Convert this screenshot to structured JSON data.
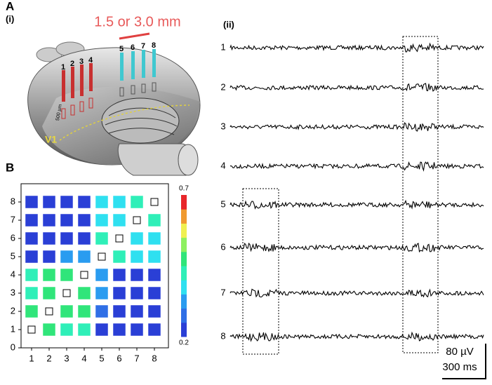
{
  "panel_a": {
    "label": "A",
    "sublabel": "(i)",
    "spacing_label": "1.5 or 3.0 mm",
    "electrodes": [
      "1",
      "2",
      "3",
      "4",
      "5",
      "6",
      "7",
      "8"
    ],
    "depth_label": "500 µm",
    "area_label": "V1"
  },
  "panel_b": {
    "label": "B",
    "type": "heatmap",
    "xticks": [
      1,
      2,
      3,
      4,
      5,
      6,
      7,
      8
    ],
    "yticks": [
      0,
      1,
      2,
      3,
      4,
      5,
      6,
      7,
      8
    ],
    "xlim": [
      0.4,
      8.8
    ],
    "ylim": [
      0,
      9
    ],
    "values": [
      [
        null,
        0.47,
        0.42,
        0.42,
        0.22,
        0.22,
        0.22,
        0.22
      ],
      [
        0.47,
        null,
        0.47,
        0.47,
        0.27,
        0.22,
        0.22,
        0.22
      ],
      [
        0.42,
        0.47,
        null,
        0.47,
        0.32,
        0.22,
        0.22,
        0.22
      ],
      [
        0.42,
        0.47,
        0.47,
        null,
        0.32,
        0.22,
        0.22,
        0.22
      ],
      [
        0.22,
        0.22,
        0.32,
        0.32,
        null,
        0.42,
        0.37,
        0.37
      ],
      [
        0.22,
        0.22,
        0.22,
        0.22,
        0.42,
        null,
        0.37,
        0.37
      ],
      [
        0.22,
        0.22,
        0.22,
        0.22,
        0.37,
        0.37,
        null,
        0.42
      ],
      [
        0.22,
        0.22,
        0.22,
        0.22,
        0.37,
        0.37,
        0.42,
        null
      ]
    ],
    "clim": [
      0.2,
      0.7
    ],
    "colorbar_ticks": [
      0.7,
      0.2
    ],
    "colormap": [
      "#2a3fd6",
      "#2f6fe6",
      "#2a9cf0",
      "#2fe0f0",
      "#2fefb8",
      "#30e57a",
      "#8ef060",
      "#f0f050",
      "#f09a30",
      "#e8262a"
    ]
  },
  "panel_ii": {
    "sublabel": "(ii)",
    "channels": [
      "1",
      "2",
      "3",
      "4",
      "5",
      "6",
      "7",
      "8"
    ],
    "scale_voltage": "80 µV",
    "scale_time": "300 ms"
  }
}
